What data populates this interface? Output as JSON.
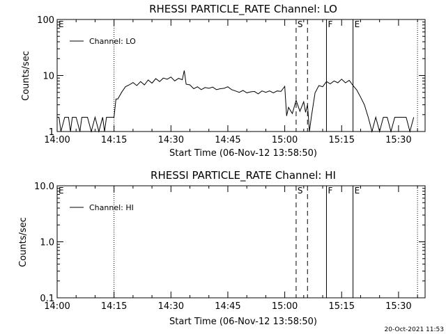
{
  "footer_timestamp": "20-Oct-2021 11:53",
  "chart_data": [
    {
      "type": "line",
      "title": "RHESSI PARTICLE_RATE Channel: LO",
      "xlabel": "Start Time (06-Nov-12 13:58:50)",
      "ylabel": "Counts/sec",
      "yscale": "log",
      "ylim": [
        1,
        100
      ],
      "y_ticks": [
        1,
        10,
        100
      ],
      "y_tick_labels": [
        "1",
        "10",
        "100"
      ],
      "xlim_minutes_after_1400": [
        0,
        97
      ],
      "x_ticks": [
        "14:00",
        "14:15",
        "14:30",
        "14:45",
        "15:00",
        "15:15",
        "15:30"
      ],
      "legend": {
        "label": "Channel: LO",
        "placement": "top-left"
      },
      "markers": [
        {
          "label": "E",
          "time": "14:00",
          "style": "none"
        },
        {
          "label": "",
          "time": "14:15",
          "style": "dotted"
        },
        {
          "label": "S",
          "time": "15:03",
          "style": "dashed"
        },
        {
          "label": "",
          "time": "15:06",
          "style": "dashed"
        },
        {
          "label": "F",
          "time": "15:11",
          "style": "solid"
        },
        {
          "label": "E",
          "time": "15:18",
          "style": "solid"
        },
        {
          "label": "",
          "time": "15:35",
          "style": "dotted"
        }
      ],
      "series": [
        {
          "name": "Channel: LO",
          "x": [
            "14:00",
            "14:00.5",
            "14:01",
            "14:02",
            "14:03",
            "14:03.5",
            "14:04",
            "14:05",
            "14:06",
            "14:06.5",
            "14:07",
            "14:08",
            "14:09",
            "14:10",
            "14:11",
            "14:12",
            "14:12.5",
            "14:13",
            "14:14",
            "14:15",
            "14:15.5",
            "14:16",
            "14:17",
            "14:18",
            "14:19",
            "14:20",
            "14:21",
            "14:22",
            "14:23",
            "14:24",
            "14:25",
            "14:26",
            "14:27",
            "14:28",
            "14:29",
            "14:30",
            "14:31",
            "14:32",
            "14:33",
            "14:33.5",
            "14:34",
            "14:35",
            "14:36",
            "14:37",
            "14:38",
            "14:39",
            "14:40",
            "14:41",
            "14:42",
            "14:43",
            "14:44",
            "14:45",
            "14:46",
            "14:47",
            "14:48",
            "14:49",
            "14:50",
            "14:51",
            "14:52",
            "14:53",
            "14:54",
            "14:55",
            "14:56",
            "14:57",
            "14:58",
            "14:59",
            "15:00",
            "15:00.5",
            "15:01",
            "15:02",
            "15:03",
            "15:04",
            "15:05",
            "15:05.5",
            "15:06",
            "15:06.5",
            "15:07",
            "15:08",
            "15:09",
            "15:10",
            "15:11",
            "15:12",
            "15:13",
            "15:14",
            "15:15",
            "15:16",
            "15:17",
            "15:18",
            "15:19",
            "15:20",
            "15:21",
            "15:22",
            "15:23",
            "15:24",
            "15:25",
            "15:26",
            "15:27",
            "15:28",
            "15:29",
            "15:30",
            "15:31",
            "15:32",
            "15:33",
            "15:34"
          ],
          "y": [
            1.8,
            1.8,
            1.0,
            1.8,
            1.8,
            1.0,
            1.8,
            1.8,
            1.0,
            1.8,
            1.8,
            1.8,
            1.0,
            1.8,
            1.0,
            1.8,
            1.0,
            1.8,
            1.8,
            1.8,
            3.8,
            3.8,
            5.0,
            6.3,
            6.8,
            7.5,
            6.6,
            7.8,
            6.8,
            8.3,
            7.3,
            8.8,
            7.8,
            9.0,
            8.6,
            9.4,
            8.0,
            8.9,
            8.4,
            12.3,
            7.0,
            6.8,
            5.8,
            6.3,
            5.6,
            6.1,
            5.9,
            6.2,
            5.6,
            5.8,
            5.9,
            6.3,
            5.6,
            5.3,
            5.0,
            5.4,
            4.9,
            5.1,
            5.2,
            4.7,
            5.3,
            5.0,
            5.3,
            4.9,
            5.3,
            5.2,
            6.4,
            1.9,
            2.7,
            2.1,
            3.6,
            2.3,
            3.4,
            2.2,
            3.0,
            1.0,
            1.8,
            4.9,
            6.6,
            6.3,
            7.8,
            7.1,
            8.0,
            7.4,
            8.6,
            7.4,
            8.2,
            6.6,
            5.5,
            4.1,
            3.0,
            1.8,
            1.0,
            1.8,
            1.0,
            1.8,
            1.8,
            1.0,
            1.8,
            1.8,
            1.8,
            1.8,
            1.0,
            1.8
          ]
        }
      ]
    },
    {
      "type": "line",
      "title": "RHESSI PARTICLE_RATE Channel: HI",
      "xlabel": "Start Time (06-Nov-12 13:58:50)",
      "ylabel": "Counts/sec",
      "yscale": "log",
      "ylim": [
        0.1,
        10.0
      ],
      "y_ticks": [
        0.1,
        1.0,
        10.0
      ],
      "y_tick_labels": [
        "0.1",
        "1.0",
        "10.0"
      ],
      "xlim_minutes_after_1400": [
        0,
        97
      ],
      "x_ticks": [
        "14:00",
        "14:15",
        "14:30",
        "14:45",
        "15:00",
        "15:15",
        "15:30"
      ],
      "legend": {
        "label": "Channel: HI",
        "placement": "top-left"
      },
      "markers": [
        {
          "label": "E",
          "time": "14:00",
          "style": "none"
        },
        {
          "label": "",
          "time": "14:15",
          "style": "dotted"
        },
        {
          "label": "S",
          "time": "15:03",
          "style": "dashed"
        },
        {
          "label": "",
          "time": "15:06",
          "style": "dashed"
        },
        {
          "label": "F",
          "time": "15:11",
          "style": "solid"
        },
        {
          "label": "E",
          "time": "15:18",
          "style": "solid"
        },
        {
          "label": "",
          "time": "15:35",
          "style": "dotted"
        }
      ],
      "series": [
        {
          "name": "Channel: HI",
          "x": [],
          "y": []
        }
      ]
    }
  ]
}
